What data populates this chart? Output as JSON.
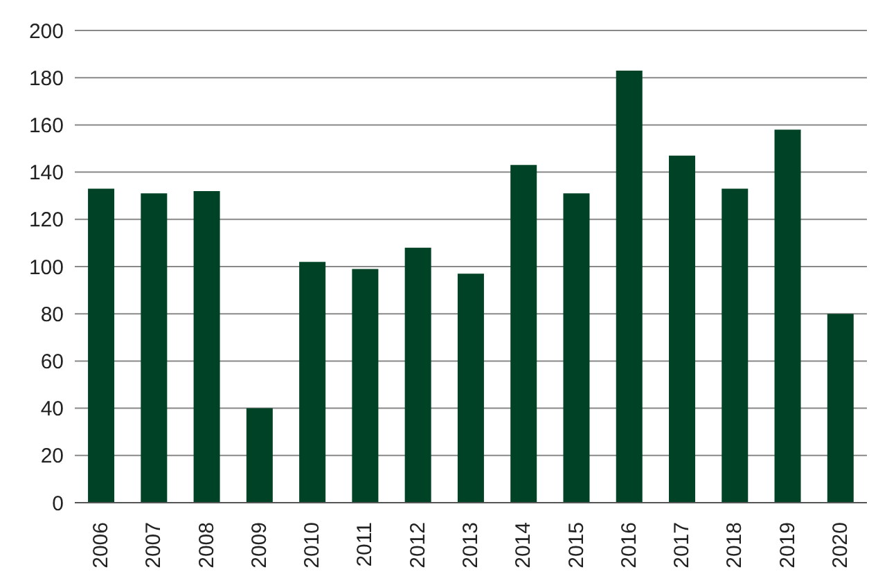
{
  "chart_data": {
    "type": "bar",
    "categories": [
      "2006",
      "2007",
      "2008",
      "2009",
      "2010",
      "2011",
      "2012",
      "2013",
      "2014",
      "2015",
      "2016",
      "2017",
      "2018",
      "2019",
      "2020"
    ],
    "values": [
      133,
      131,
      132,
      40,
      102,
      99,
      108,
      97,
      143,
      131,
      183,
      147,
      133,
      158,
      80
    ],
    "color": "#004225",
    "ylim": [
      0,
      200
    ],
    "yticks": [
      0,
      20,
      40,
      60,
      80,
      100,
      120,
      140,
      160,
      180,
      200
    ],
    "grid": "y"
  }
}
